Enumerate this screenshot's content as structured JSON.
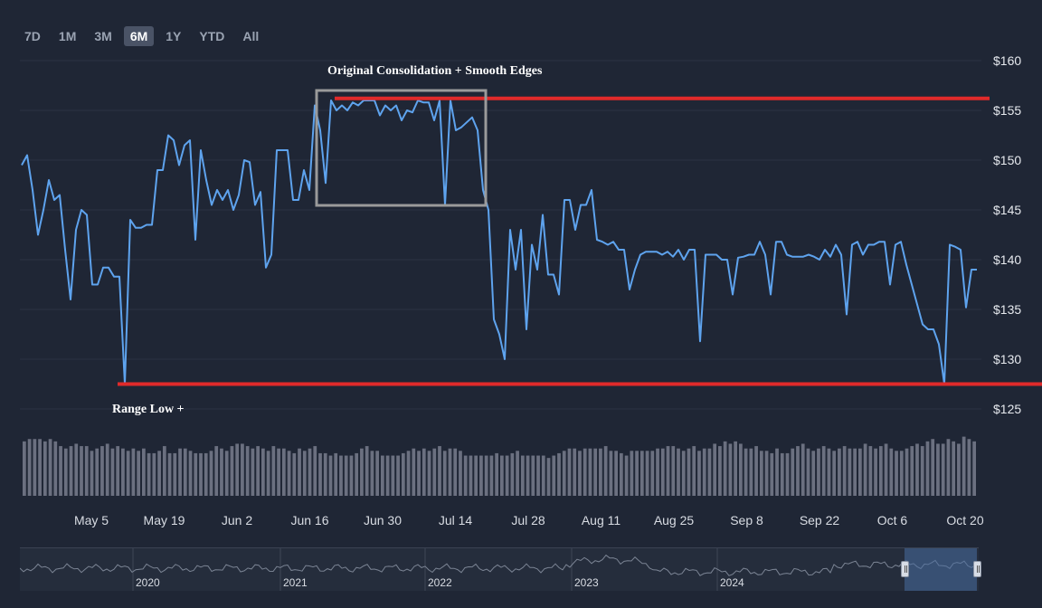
{
  "range_tabs": [
    {
      "label": "7D",
      "active": false
    },
    {
      "label": "1M",
      "active": false
    },
    {
      "label": "3M",
      "active": false
    },
    {
      "label": "6M",
      "active": true
    },
    {
      "label": "1Y",
      "active": false
    },
    {
      "label": "YTD",
      "active": false
    },
    {
      "label": "All",
      "active": false
    }
  ],
  "colors": {
    "background": "#1f2635",
    "price_line": "#5ea3ee",
    "annotation_line": "#e02a2a",
    "annotation_box": "#9a9a9a",
    "volume_bar": "#6b7080"
  },
  "annotations": {
    "consolidation_label": "Original Consolidation + Smooth Edges",
    "range_low_label": "Range Low +",
    "consolidation_high_level": 156.2,
    "range_low_level": 127.5
  },
  "chart_data": {
    "type": "line",
    "ylim": [
      125,
      160
    ],
    "yticks": [
      125,
      130,
      135,
      140,
      145,
      150,
      155,
      160
    ],
    "ytick_labels": [
      "$125",
      "$130",
      "$135",
      "$140",
      "$145",
      "$150",
      "$155",
      "$160"
    ],
    "xtick_labels": [
      "May 5",
      "May 19",
      "Jun 2",
      "Jun 16",
      "Jun 30",
      "Jul 14",
      "Jul 28",
      "Aug 11",
      "Aug 25",
      "Sep 8",
      "Sep 22",
      "Oct 6",
      "Oct 20"
    ],
    "grid": true,
    "series": [
      {
        "values": [
          149.5,
          150.5,
          147,
          142.5,
          145,
          148,
          146,
          146.5,
          141,
          136,
          143,
          145,
          144.5,
          137.5,
          137.5,
          139.2,
          139.2,
          138.3,
          138.3,
          127.5,
          144,
          143.2,
          143.2,
          143.5,
          143.5,
          149,
          149,
          152.5,
          152,
          149.5,
          151.5,
          152,
          142,
          151,
          148,
          145.5,
          147,
          146,
          147,
          145,
          146.5,
          150,
          149.8,
          145.5,
          146.8,
          139.2,
          140.5,
          151,
          151,
          151,
          146,
          146,
          149,
          147,
          155.5,
          153,
          147.7,
          156,
          155,
          155.5,
          155,
          155.8,
          155.5,
          156,
          156,
          156,
          154.5,
          155.5,
          155,
          155.5,
          154,
          155,
          154.8,
          156,
          155.8,
          155.8,
          154,
          156,
          145.5,
          156,
          153,
          153.3,
          153.8,
          154.3,
          153,
          147,
          145,
          134,
          132.5,
          130,
          143,
          139,
          143,
          133,
          141.5,
          139,
          144.5,
          138.5,
          138.5,
          136.5,
          146,
          146,
          143,
          145.5,
          145.5,
          147,
          142,
          141.8,
          141.5,
          141.8,
          141,
          141,
          137,
          139,
          140.5,
          140.8,
          140.8,
          140.8,
          140.5,
          140.8,
          140.3,
          141,
          140,
          141,
          141,
          131.8,
          140.5,
          140.5,
          140.5,
          140,
          140,
          136.5,
          140.2,
          140.3,
          140.5,
          140.5,
          141.8,
          140.5,
          136.5,
          141.8,
          141.8,
          140.5,
          140.3,
          140.3,
          140.3,
          140.5,
          140.3,
          140,
          141,
          140.3,
          141.5,
          140.5,
          134.5,
          141.5,
          141.8,
          140.5,
          141.5,
          141.5,
          141.8,
          141.8,
          137.5,
          141.5,
          141.8,
          139.5,
          137.5,
          135.5,
          133.5,
          133,
          133,
          131.5,
          127.5,
          141.5,
          141.3,
          141,
          135.2,
          139,
          139
        ]
      }
    ],
    "volume": [
      23,
      24,
      24,
      24,
      23,
      24,
      23,
      21,
      20,
      21,
      22,
      21,
      21,
      19,
      20,
      21,
      22,
      20,
      21,
      20,
      19,
      20,
      19,
      20,
      18,
      18,
      19,
      21,
      18,
      18,
      20,
      20,
      19,
      18,
      18,
      18,
      19,
      21,
      20,
      19,
      21,
      22,
      22,
      21,
      20,
      21,
      20,
      19,
      21,
      20,
      20,
      19,
      18,
      20,
      19,
      20,
      21,
      18,
      18,
      17,
      18,
      17,
      17,
      17,
      18,
      20,
      21,
      19,
      19,
      17,
      17,
      17,
      17,
      18,
      19,
      20,
      19,
      20,
      19,
      20,
      21,
      19,
      20,
      20,
      19,
      17,
      17,
      17,
      17,
      17,
      17,
      18,
      17,
      17,
      18,
      19,
      17,
      17,
      17,
      17,
      17,
      16,
      17,
      18,
      19,
      20,
      20,
      19,
      20,
      20,
      20,
      20,
      21,
      19,
      19,
      18,
      17,
      19,
      19,
      19,
      19,
      19,
      20,
      20,
      21,
      21,
      20,
      19,
      20,
      21,
      19,
      20,
      20,
      22,
      21,
      23,
      22,
      23,
      22,
      20,
      20,
      21,
      19,
      19,
      18,
      20,
      18,
      18,
      20,
      21,
      22,
      20,
      19,
      20,
      21,
      20,
      19,
      20,
      21,
      20,
      20,
      20,
      22,
      21,
      20,
      21,
      22,
      20,
      19,
      19,
      20,
      21,
      22,
      21,
      23,
      24,
      22,
      22,
      24,
      23,
      22,
      25,
      24,
      23
    ],
    "navigator_year_labels": [
      "2020",
      "2021",
      "2022",
      "2023",
      "2024"
    ]
  }
}
